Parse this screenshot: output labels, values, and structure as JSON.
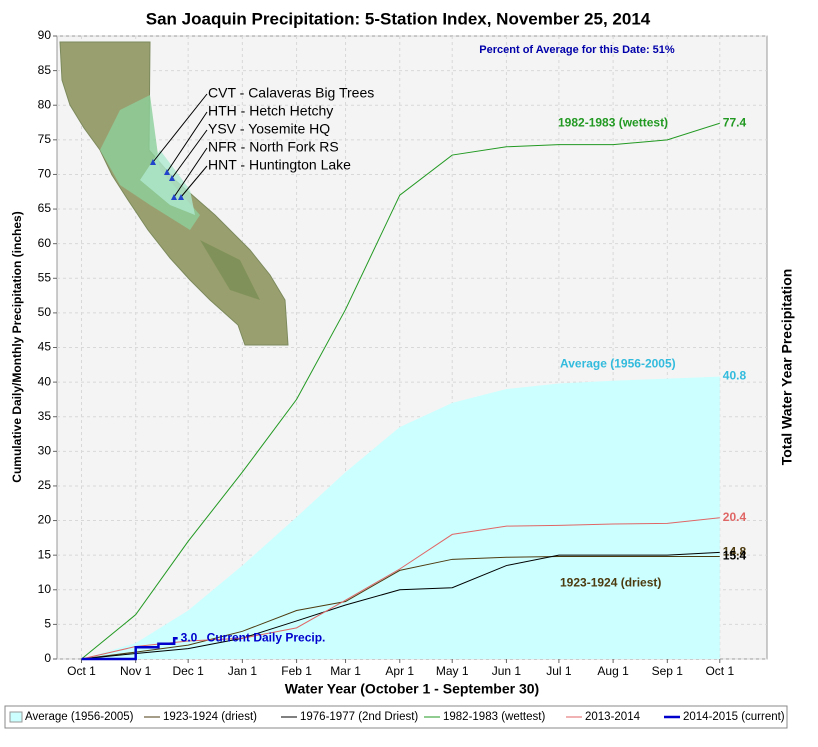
{
  "chart_data": {
    "type": "line",
    "title": "San Joaquin Precipitation: 5-Station Index, November 25, 2014",
    "xlabel": "Water Year (October 1 - September 30)",
    "ylabel": "Cumulative Daily/Monthly Precipitation (inches)",
    "y2label": "Total Water Year Precipitation",
    "percent_note": "Percent of Average for this Date: 51%",
    "stations": [
      "CVT - Calaveras Big Trees",
      "HTH - Hetch Hetchy",
      "YSV - Yosemite HQ",
      "NFR - North Fork RS",
      "HNT - Huntington Lake"
    ],
    "xlim": [
      -14,
      392
    ],
    "xticks": [
      {
        "value": 0,
        "label": "Oct 1"
      },
      {
        "value": 31,
        "label": "Nov 1"
      },
      {
        "value": 61,
        "label": "Dec 1"
      },
      {
        "value": 92,
        "label": "Jan 1"
      },
      {
        "value": 123,
        "label": "Feb 1"
      },
      {
        "value": 151,
        "label": "Mar 1"
      },
      {
        "value": 182,
        "label": "Apr 1"
      },
      {
        "value": 212,
        "label": "May 1"
      },
      {
        "value": 243,
        "label": "Jun 1"
      },
      {
        "value": 273,
        "label": "Jul 1"
      },
      {
        "value": 304,
        "label": "Aug 1"
      },
      {
        "value": 335,
        "label": "Sep 1"
      },
      {
        "value": 365,
        "label": "Oct 1"
      }
    ],
    "ylim": [
      0,
      90
    ],
    "yticks": [
      0,
      5,
      10,
      15,
      20,
      25,
      30,
      35,
      40,
      45,
      50,
      55,
      60,
      65,
      70,
      75,
      80,
      85,
      90
    ],
    "grid": true,
    "series": [
      {
        "name": "Average (1956-2005)",
        "kind": "area",
        "color": "#ccffff",
        "label_color": "#33bbdd",
        "note": "Average (1956-2005)",
        "x": [
          0,
          31,
          61,
          92,
          123,
          151,
          182,
          212,
          243,
          273,
          304,
          335,
          365
        ],
        "values": [
          0,
          2.3,
          7,
          13.5,
          20.5,
          27,
          33.5,
          37,
          39,
          39.8,
          40.2,
          40.5,
          40.8
        ]
      },
      {
        "name": "1923-1924 (driest)",
        "kind": "line",
        "color": "#4d3b10",
        "note": "1923-1924 (driest)",
        "x": [
          0,
          31,
          61,
          92,
          123,
          151,
          182,
          212,
          243,
          273,
          304,
          335,
          365
        ],
        "values": [
          0,
          1,
          2,
          4,
          7,
          8.3,
          12.8,
          14.4,
          14.7,
          14.8,
          14.8,
          14.8,
          14.8
        ]
      },
      {
        "name": "1976-1977 (2nd Driest)",
        "kind": "line",
        "color": "#000000",
        "x": [
          0,
          31,
          61,
          92,
          123,
          151,
          182,
          212,
          243,
          273,
          304,
          335,
          365
        ],
        "values": [
          0,
          0.8,
          1.5,
          3,
          5.5,
          7.8,
          10,
          10.3,
          13.5,
          15,
          15,
          15,
          15.4
        ]
      },
      {
        "name": "1982-1983 (wettest)",
        "kind": "line",
        "color": "#229922",
        "note": "1982-1983 (wettest)",
        "x": [
          0,
          31,
          61,
          92,
          123,
          151,
          182,
          212,
          243,
          273,
          304,
          335,
          365
        ],
        "values": [
          0,
          6.4,
          17,
          27,
          37.5,
          50.5,
          67,
          72.8,
          74,
          74.3,
          74.3,
          75,
          77.4
        ]
      },
      {
        "name": "2013-2014",
        "kind": "line",
        "color": "#e06666",
        "x": [
          0,
          31,
          61,
          92,
          123,
          151,
          182,
          212,
          243,
          273,
          304,
          335,
          365
        ],
        "values": [
          0,
          1.8,
          2.6,
          3,
          4.5,
          8.5,
          13,
          18,
          19.2,
          19.3,
          19.5,
          19.6,
          20.4
        ]
      },
      {
        "name": "2014-2015 (current)",
        "kind": "line",
        "color": "#0000cc",
        "width": 2.5,
        "note": "Current Daily Precip.",
        "x": [
          0,
          31,
          31,
          44,
          44,
          53,
          53,
          55
        ],
        "values": [
          0,
          0,
          1.7,
          1.7,
          2.2,
          2.2,
          3,
          3
        ],
        "value_labels": [
          null,
          null,
          null,
          null,
          null,
          null,
          null,
          "3.0"
        ]
      }
    ]
  }
}
